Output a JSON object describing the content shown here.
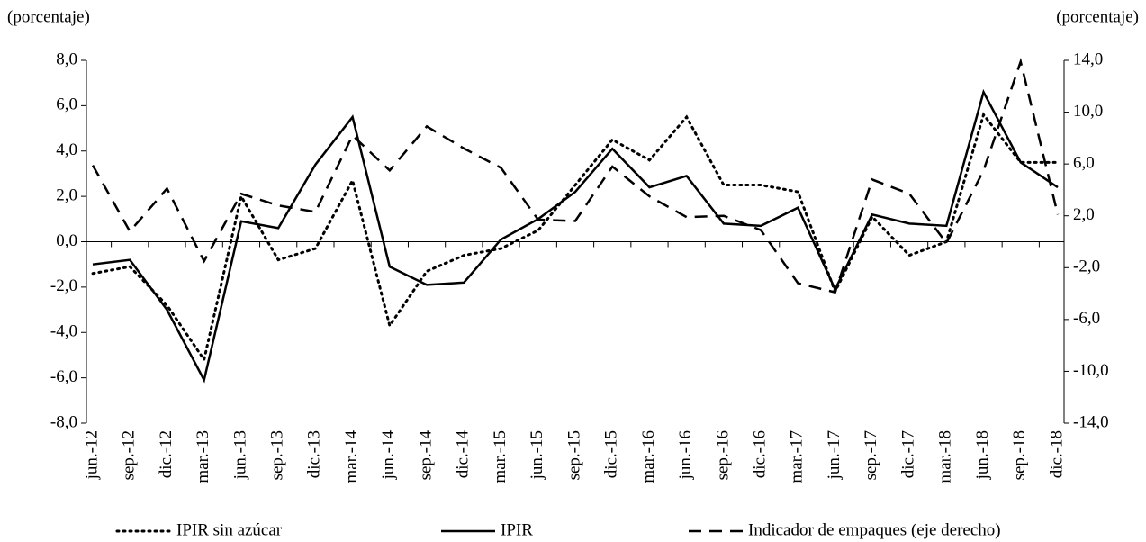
{
  "chart_data": {
    "type": "line",
    "y_label": "(porcentaje)",
    "y2_label": "(porcentaje)",
    "categories": [
      "jun.-12",
      "sep.-12",
      "dic.-12",
      "mar.-13",
      "jun.-13",
      "sep.-13",
      "dic.-13",
      "mar.-14",
      "jun.-14",
      "sep.-14",
      "dic.-14",
      "mar.-15",
      "jun.-15",
      "sep.-15",
      "dic.-15",
      "mar.-16",
      "jun.-16",
      "sep.-16",
      "dic.-16",
      "mar.-17",
      "jun.-17",
      "sep.-17",
      "dic.-17",
      "mar.-18",
      "jun.-18",
      "sep.-18",
      "dic.-18"
    ],
    "series": [
      {
        "name": "IPIR sin azúcar",
        "color": "#000000",
        "style": "dotted",
        "values": [
          -1.4,
          -1.1,
          -2.8,
          -5.2,
          2.0,
          -0.8,
          -0.3,
          2.7,
          -3.7,
          -1.3,
          -0.6,
          -0.3,
          0.5,
          2.5,
          4.5,
          3.6,
          5.5,
          2.5,
          2.5,
          2.2,
          -2.2,
          1.1,
          -0.6,
          0.0,
          5.6,
          3.5,
          3.5
        ]
      },
      {
        "name": "IPIR",
        "color": "#000000",
        "style": "solid",
        "values": [
          -1.0,
          -0.8,
          -3.0,
          -6.1,
          0.9,
          0.6,
          3.4,
          5.5,
          -1.1,
          -1.9,
          -1.8,
          0.1,
          1.0,
          2.2,
          4.1,
          2.4,
          2.9,
          0.8,
          0.7,
          1.5,
          -2.1,
          1.2,
          0.8,
          0.7,
          6.6,
          3.5,
          2.4
        ]
      },
      {
        "name": "Indicador de empaques (eje derecho)",
        "color": "#000000",
        "style": "dashed",
        "axis": "y2",
        "values": [
          5.9,
          0.8,
          4.1,
          -1.5,
          3.7,
          2.8,
          2.3,
          8.2,
          5.5,
          8.9,
          7.2,
          5.7,
          1.7,
          1.6,
          5.8,
          3.5,
          1.9,
          2.0,
          0.9,
          -3.2,
          -3.9,
          4.8,
          3.7,
          -0.1,
          5.5,
          13.9,
          2.1
        ]
      }
    ],
    "ylim": [
      -8,
      8
    ],
    "yticks": [
      {
        "value": -8,
        "label": "-8,0"
      },
      {
        "value": -6,
        "label": "-6,0"
      },
      {
        "value": -4,
        "label": "-4,0"
      },
      {
        "value": -2,
        "label": "-2,0"
      },
      {
        "value": 0,
        "label": "0,0"
      },
      {
        "value": 2,
        "label": "2,0"
      },
      {
        "value": 4,
        "label": "4,0"
      },
      {
        "value": 6,
        "label": "6,0"
      },
      {
        "value": 8,
        "label": "8,0"
      }
    ],
    "y2lim": [
      -14,
      14
    ],
    "y2ticks": [
      {
        "value": -14,
        "label": "-14,0"
      },
      {
        "value": -10,
        "label": "-10,0"
      },
      {
        "value": -6,
        "label": "-6,0"
      },
      {
        "value": -2,
        "label": "-2,0"
      },
      {
        "value": 2,
        "label": "2,0"
      },
      {
        "value": 6,
        "label": "6,0"
      },
      {
        "value": 10,
        "label": "10,0"
      },
      {
        "value": 14,
        "label": "14,0"
      }
    ],
    "legend": "bottom"
  }
}
